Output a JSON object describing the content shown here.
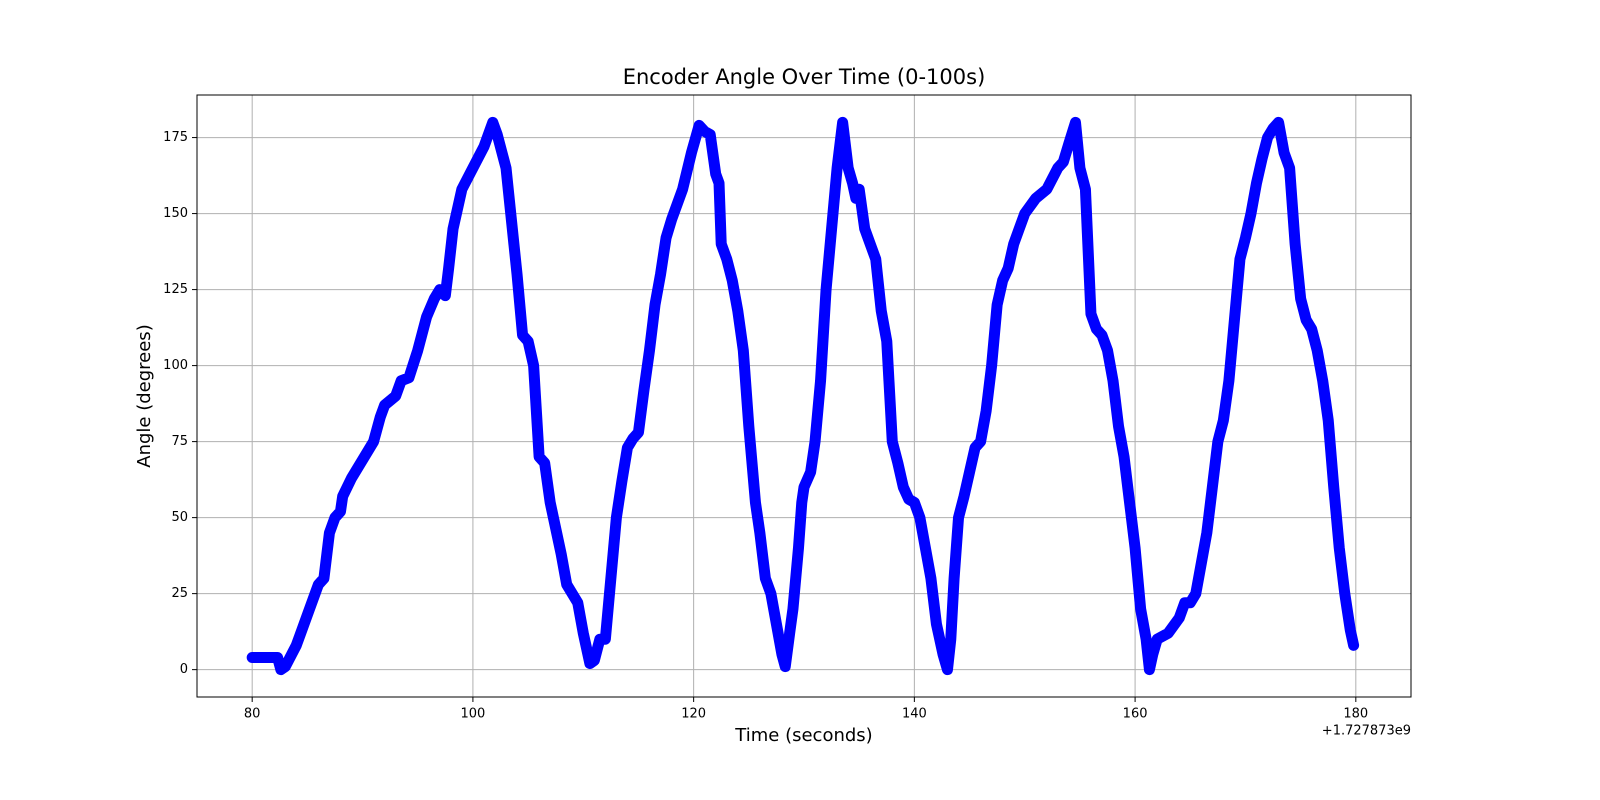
{
  "chart_data": {
    "type": "line",
    "title": "Encoder Angle Over Time (0-100s)",
    "x_label": "Time (seconds)",
    "y_label": "Angle (degrees)",
    "x_offset_text": "+1.727873e9",
    "xlim": [
      75,
      185
    ],
    "ylim": [
      -9,
      189
    ],
    "xticks": [
      80,
      100,
      120,
      140,
      160,
      180
    ],
    "yticks": [
      0,
      25,
      50,
      75,
      100,
      125,
      150,
      175
    ],
    "grid": true,
    "x": [
      80,
      82,
      82.3,
      82.6,
      83,
      84,
      85,
      86,
      86.5,
      87,
      87.5,
      88,
      88.2,
      89,
      90,
      91,
      91.6,
      92,
      93,
      93.5,
      94.2,
      95,
      95.8,
      96.5,
      97,
      97.5,
      97.8,
      98.2,
      99,
      100,
      101,
      101.8,
      102.2,
      103,
      104,
      104.5,
      105,
      105.5,
      106,
      106.5,
      107,
      108,
      108.5,
      109,
      109.5,
      110,
      110.6,
      111,
      111.5,
      112,
      112.5,
      113,
      113.5,
      114,
      114.5,
      115,
      115.5,
      116,
      116.5,
      117,
      117.5,
      118,
      119,
      119.8,
      120.5,
      121,
      121.5,
      122,
      122.3,
      122.5,
      123,
      123.5,
      124,
      124.5,
      125,
      125.6,
      126,
      126.5,
      127,
      127.5,
      128,
      128.3,
      128.7,
      129,
      129.5,
      129.8,
      130,
      130.6,
      131,
      131.5,
      132,
      132.5,
      133,
      133.5,
      134,
      134.4,
      134.7,
      135,
      135.5,
      136,
      136.5,
      137,
      137.5,
      138,
      138.5,
      139,
      139.5,
      140,
      140.5,
      141,
      141.5,
      142,
      142.6,
      143,
      143.3,
      143.6,
      144,
      144.5,
      145,
      145.5,
      146,
      146.5,
      147,
      147.5,
      148,
      148.5,
      149,
      149.5,
      150,
      151,
      152,
      153,
      153.5,
      154,
      154.6,
      155,
      155.5,
      156,
      156.5,
      157,
      157.5,
      158,
      158.5,
      159,
      159.5,
      160,
      160.5,
      161,
      161.3,
      161.6,
      162,
      163,
      164,
      164.5,
      165,
      165.5,
      166,
      166.5,
      167,
      167.5,
      168,
      168.5,
      169,
      169.5,
      170,
      170.5,
      171,
      171.5,
      172,
      172.5,
      173,
      173.5,
      174,
      174.5,
      175,
      175.5,
      176,
      176.5,
      177,
      177.5,
      178,
      178.5,
      179,
      179.5,
      179.8
    ],
    "series": [
      {
        "color": "#0000ff",
        "values": [
          4,
          4,
          4,
          0,
          1,
          8,
          18,
          28,
          30,
          45,
          50,
          52,
          57,
          63,
          69,
          75,
          83,
          87,
          90,
          95,
          96,
          105,
          116,
          122,
          125,
          123,
          132,
          145,
          158,
          165,
          172,
          180,
          176,
          165,
          130,
          110,
          108,
          100,
          70,
          68,
          55,
          38,
          28,
          25,
          22,
          12,
          2,
          3,
          10,
          10,
          30,
          50,
          62,
          73,
          76,
          78,
          92,
          105,
          120,
          130,
          142,
          148,
          158,
          170,
          179,
          177,
          176,
          163,
          160,
          140,
          135,
          128,
          118,
          105,
          80,
          55,
          45,
          30,
          25,
          15,
          5,
          1,
          12,
          20,
          40,
          55,
          60,
          65,
          75,
          95,
          125,
          145,
          165,
          180,
          165,
          160,
          155,
          158,
          145,
          140,
          135,
          118,
          108,
          75,
          68,
          60,
          56,
          55,
          50,
          40,
          30,
          15,
          5,
          0,
          10,
          30,
          50,
          57,
          65,
          73,
          75,
          85,
          100,
          120,
          128,
          132,
          140,
          145,
          150,
          155,
          158,
          165,
          167,
          173,
          180,
          165,
          158,
          117,
          112,
          110,
          105,
          95,
          80,
          70,
          55,
          40,
          20,
          10,
          0,
          5,
          10,
          12,
          17,
          22,
          22,
          25,
          35,
          45,
          60,
          75,
          82,
          95,
          115,
          135,
          142,
          150,
          160,
          168,
          175,
          178,
          180,
          170,
          165,
          140,
          122,
          115,
          112,
          105,
          95,
          82,
          60,
          40,
          25,
          13,
          8
        ]
      }
    ]
  }
}
